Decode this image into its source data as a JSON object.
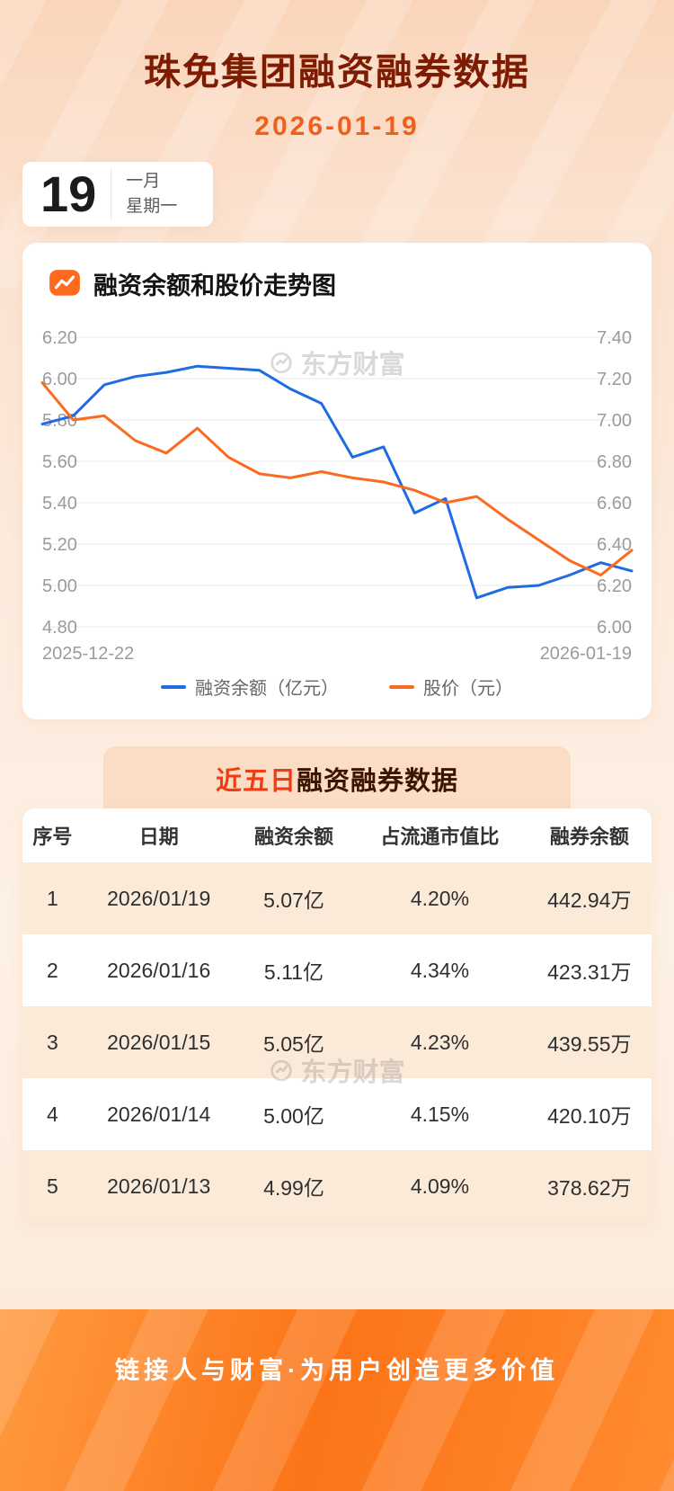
{
  "header": {
    "title": "珠免集团融资融券数据",
    "date": "2026-01-19"
  },
  "date_card": {
    "day": "19",
    "month": "一月",
    "weekday": "星期一"
  },
  "chart": {
    "title": "融资余额和股价走势图",
    "watermark": "东方财富",
    "legend": [
      {
        "label": "融资余额（亿元）",
        "color": "#1f6be6"
      },
      {
        "label": "股价（元）",
        "color": "#fb6a1e"
      }
    ]
  },
  "chart_data": {
    "type": "line",
    "title": "融资余额和股价走势图",
    "grid": true,
    "legend_position": "bottom",
    "x_labels": [
      "2025-12-22",
      "2026-01-19"
    ],
    "left_axis": {
      "label": "融资余额（亿元）",
      "min": 4.8,
      "max": 6.2,
      "ticks": [
        "6.20",
        "6.00",
        "5.80",
        "5.60",
        "5.40",
        "5.20",
        "5.00",
        "4.80"
      ]
    },
    "right_axis": {
      "label": "股价（元）",
      "min": 6.0,
      "max": 7.4,
      "ticks": [
        "7.40",
        "7.20",
        "7.00",
        "6.80",
        "6.60",
        "6.40",
        "6.20",
        "6.00"
      ]
    },
    "series": [
      {
        "name": "融资余额（亿元）",
        "axis": "left",
        "color": "#1f6be6",
        "values": [
          5.78,
          5.82,
          5.97,
          6.01,
          6.03,
          6.06,
          6.05,
          6.04,
          5.95,
          5.88,
          5.62,
          5.67,
          5.35,
          5.42,
          4.94,
          4.99,
          5.0,
          5.05,
          5.11,
          5.07
        ]
      },
      {
        "name": "股价（元）",
        "axis": "right",
        "color": "#fb6a1e",
        "values": [
          7.18,
          7.0,
          7.02,
          6.9,
          6.84,
          6.96,
          6.82,
          6.74,
          6.72,
          6.75,
          6.72,
          6.7,
          6.66,
          6.6,
          6.63,
          6.52,
          6.42,
          6.32,
          6.25,
          6.37
        ]
      }
    ]
  },
  "table": {
    "title_highlight": "近五日",
    "title_rest": "融资融券数据",
    "watermark": "东方财富",
    "columns": [
      "序号",
      "日期",
      "融资余额",
      "占流通市值比",
      "融券余额"
    ],
    "rows": [
      [
        "1",
        "2026/01/19",
        "5.07亿",
        "4.20%",
        "442.94万"
      ],
      [
        "2",
        "2026/01/16",
        "5.11亿",
        "4.34%",
        "423.31万"
      ],
      [
        "3",
        "2026/01/15",
        "5.05亿",
        "4.23%",
        "439.55万"
      ],
      [
        "4",
        "2026/01/14",
        "5.00亿",
        "4.15%",
        "420.10万"
      ],
      [
        "5",
        "2026/01/13",
        "4.99亿",
        "4.09%",
        "378.62万"
      ]
    ]
  },
  "footer": {
    "slogan": "链接人与财富·为用户创造更多价值"
  },
  "colors": {
    "title": "#7d1b03",
    "date": "#f0601d",
    "financing_line": "#1f6be6",
    "price_line": "#fb6a1e",
    "stripe": "#fcead9",
    "badge_highlight": "#f03c12"
  }
}
